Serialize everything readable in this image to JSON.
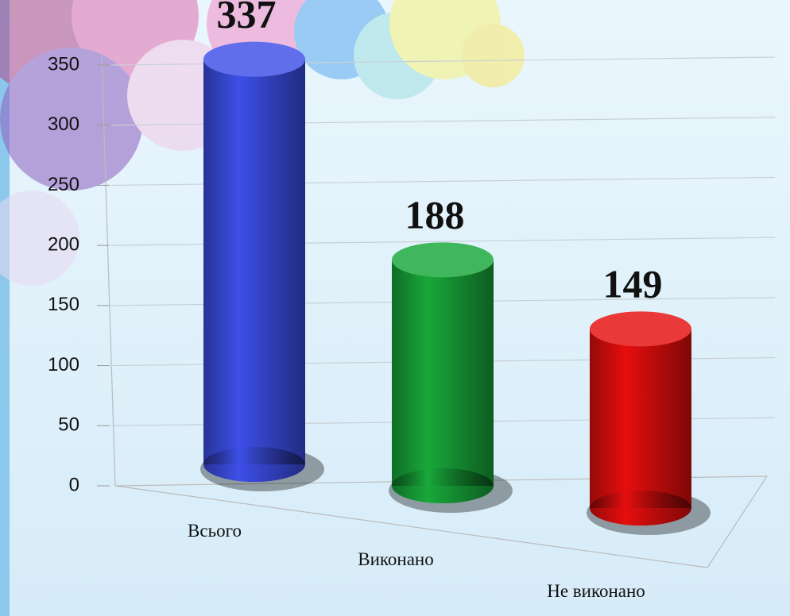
{
  "chart_data": {
    "type": "bar3d",
    "categories": [
      "Всього",
      "Виконано",
      "Не виконано"
    ],
    "values": [
      337,
      188,
      149
    ],
    "colors": [
      "#3d4fe8",
      "#18a83a",
      "#e60e0e"
    ],
    "ylim": [
      0,
      350
    ],
    "yticks": [
      0,
      50,
      100,
      150,
      200,
      250,
      300,
      350
    ],
    "grid": true
  }
}
